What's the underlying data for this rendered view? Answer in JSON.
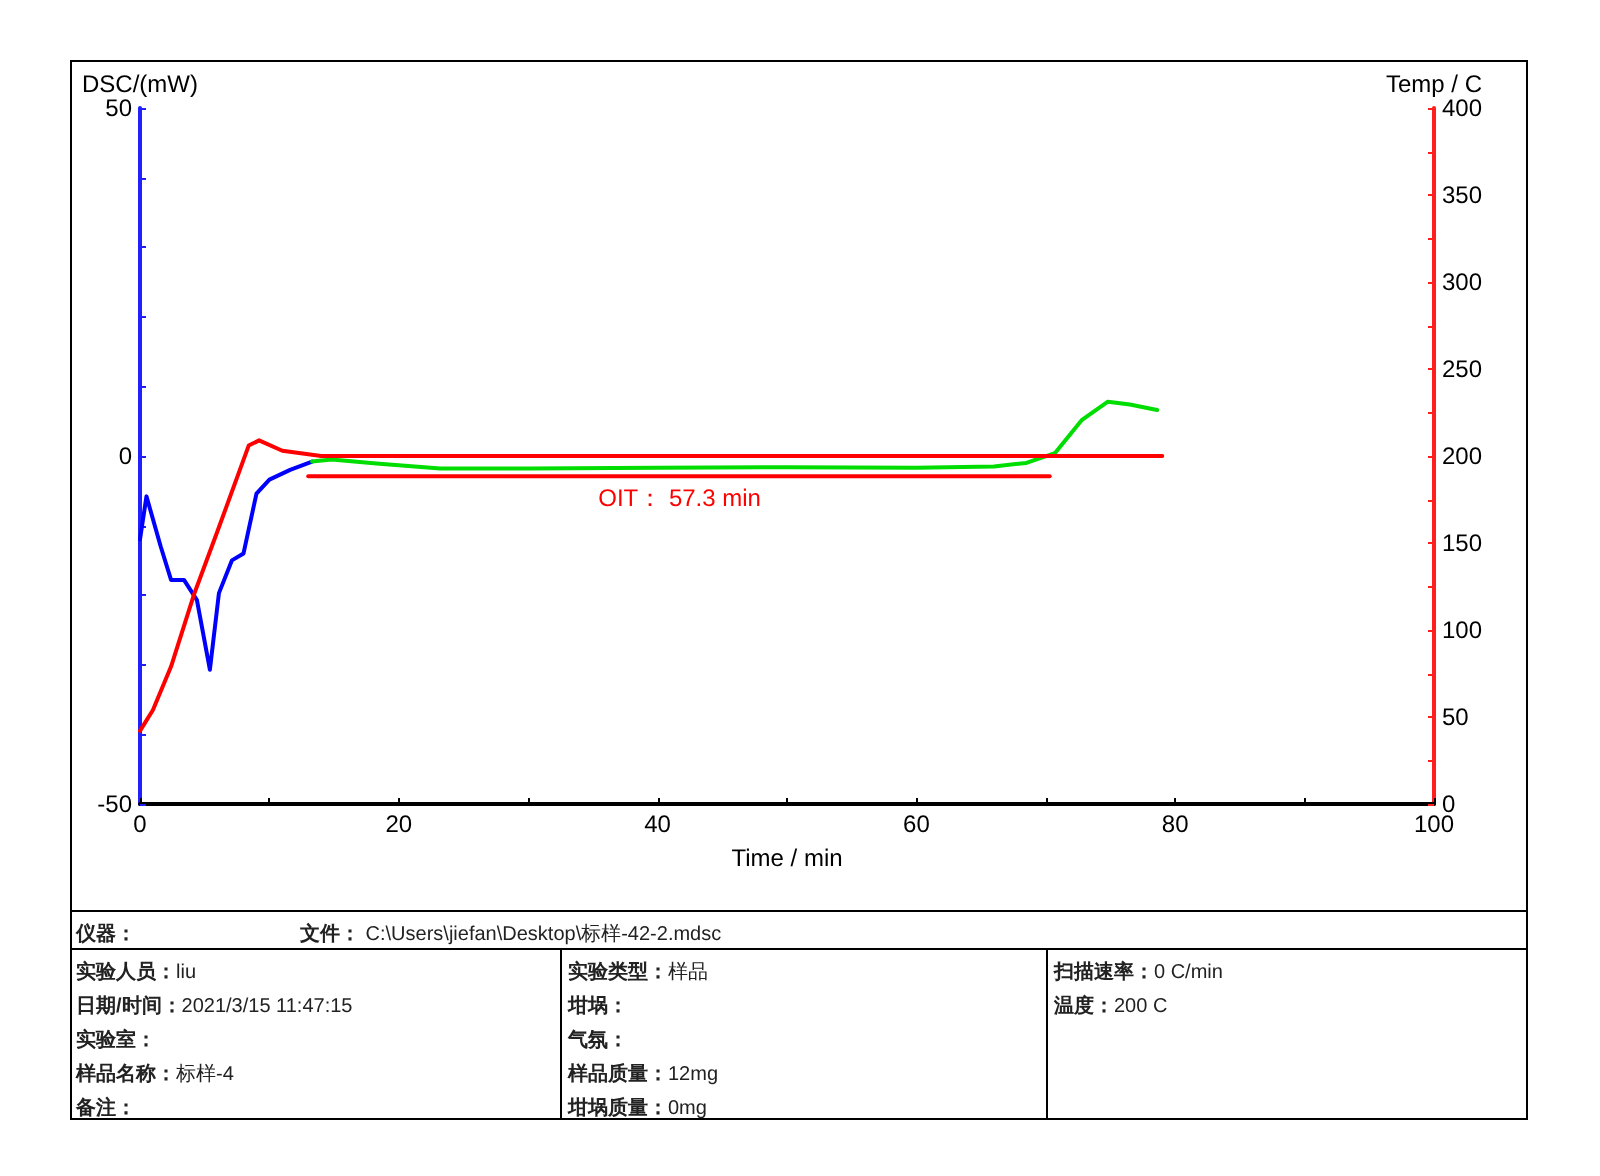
{
  "chart_data": {
    "type": "line",
    "xlabel": "Time / min",
    "ylabel": "DSC/(mW)",
    "y2label": "Temp / C",
    "marker": "none",
    "xlim": [
      0,
      100
    ],
    "xticks": [
      0,
      {
        "value": 10,
        "label": null
      },
      20,
      {
        "value": 30,
        "label": null
      },
      40,
      {
        "value": 50,
        "label": null
      },
      60,
      {
        "value": 70,
        "label": null
      },
      80,
      {
        "value": 90,
        "label": null
      },
      100
    ],
    "ylim": [
      -50,
      50
    ],
    "yticks": [
      -50,
      {
        "value": -40,
        "label": null
      },
      {
        "value": -30,
        "label": null
      },
      {
        "value": -20,
        "label": null
      },
      {
        "value": -10,
        "label": null
      },
      0,
      {
        "value": 10,
        "label": null
      },
      {
        "value": 20,
        "label": null
      },
      {
        "value": 30,
        "label": null
      },
      {
        "value": 40,
        "label": null
      },
      50
    ],
    "y2lim": [
      0,
      400
    ],
    "y2ticks": [
      0,
      {
        "value": 25,
        "label": null
      },
      50,
      {
        "value": 75,
        "label": null
      },
      100,
      {
        "value": 125,
        "label": null
      },
      150,
      {
        "value": 175,
        "label": null
      },
      200,
      {
        "value": 225,
        "label": null
      },
      250,
      {
        "value": 275,
        "label": null
      },
      300,
      {
        "value": 325,
        "label": null
      },
      350,
      {
        "value": 375,
        "label": null
      },
      400
    ],
    "series": [
      {
        "color": "#0000ff",
        "x": [
          0,
          0.5,
          1.6,
          2.4,
          3.4,
          4.4,
          5.4,
          6.1,
          7.1,
          8.0,
          9.0,
          10.0,
          11.6,
          13.3
        ],
        "values": [
          -12,
          -5.8,
          -13,
          -17.8,
          -17.8,
          -20.7,
          -30.7,
          -19.7,
          -15,
          -14,
          -5.4,
          -3.4,
          -2,
          -0.8
        ]
      },
      {
        "color": "#00dd00",
        "x": [
          13.3,
          14.8,
          18.5,
          23.2,
          30,
          40,
          50,
          60,
          66,
          68.5,
          70.7,
          72.8,
          74.8,
          76.5,
          78.6
        ],
        "values": [
          -0.8,
          -0.5,
          -1.1,
          -1.8,
          -1.8,
          -1.7,
          -1.6,
          -1.7,
          -1.5,
          -1.0,
          0.4,
          5.2,
          7.8,
          7.4,
          6.6
        ]
      },
      {
        "color": "#ff0000",
        "axis": "y2",
        "x": [
          0,
          1,
          2.4,
          4.2,
          6,
          8.4,
          9.2,
          11,
          14,
          79
        ],
        "values": [
          42,
          54,
          79,
          121,
          157,
          206,
          209,
          203,
          200,
          200
        ]
      },
      {
        "color": "#ff0000",
        "x": [
          13,
          70.3
        ],
        "values": [
          -2.9,
          -2.9
        ]
      }
    ],
    "annotations": [
      {
        "text": "OIT： 57.3 min",
        "x": 41.7,
        "y": -2.9
      },
      "仪器：",
      "文件：  C:\\Users\\jiefan\\Desktop\\标样-42-2.mdsc",
      "实验人员：liu",
      "日期/时间：2021/3/15 11:47:15",
      "实验室：",
      "样品名称：标样-4",
      "备注：",
      "实验类型：样品",
      "坩埚：",
      "气氛：",
      "样品质量：12mg",
      "坩埚质量：0mg",
      "扫描速率：0 C/min",
      "温度：200 C"
    ]
  }
}
